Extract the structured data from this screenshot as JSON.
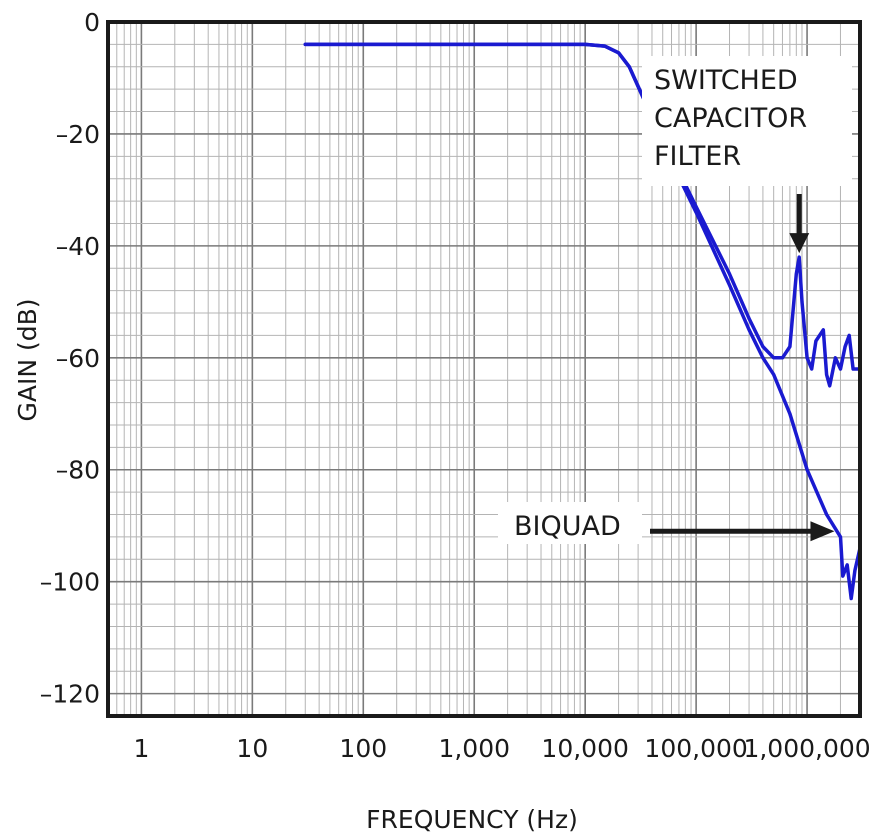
{
  "chart_data": {
    "type": "line",
    "xlabel": "FREQUENCY (Hz)",
    "ylabel": "GAIN (dB)",
    "x_scale": "log",
    "grid": true,
    "xlim": [
      0.5,
      3000000
    ],
    "ylim": [
      -124,
      0
    ],
    "x_ticks": [
      {
        "value": 1,
        "label": "1"
      },
      {
        "value": 10,
        "label": "10"
      },
      {
        "value": 100,
        "label": "100"
      },
      {
        "value": 1000,
        "label": "1,000"
      },
      {
        "value": 10000,
        "label": "10,000"
      },
      {
        "value": 100000,
        "label": "100,000"
      },
      {
        "value": 1000000,
        "label": "1,000,000"
      }
    ],
    "y_ticks": [
      {
        "value": 0,
        "label": "0"
      },
      {
        "value": -20,
        "label": "–20"
      },
      {
        "value": -40,
        "label": "–40"
      },
      {
        "value": -60,
        "label": "–60"
      },
      {
        "value": -80,
        "label": "–80"
      },
      {
        "value": -100,
        "label": "–100"
      },
      {
        "value": -120,
        "label": "–120"
      }
    ],
    "series": [
      {
        "color": "#1a1ad0",
        "points": [
          [
            30,
            -4
          ],
          [
            1000,
            -4
          ],
          [
            10000,
            -4
          ],
          [
            15000,
            -4.3
          ],
          [
            20000,
            -5.5
          ],
          [
            25000,
            -8
          ],
          [
            30000,
            -11.5
          ],
          [
            40000,
            -17
          ],
          [
            60000,
            -24
          ],
          [
            100000,
            -33
          ],
          [
            200000,
            -45
          ],
          [
            300000,
            -53
          ],
          [
            400000,
            -58
          ],
          [
            500000,
            -60
          ],
          [
            600000,
            -60
          ],
          [
            700000,
            -58
          ],
          [
            800000,
            -45
          ],
          [
            850000,
            -42
          ],
          [
            900000,
            -50
          ],
          [
            1000000,
            -60
          ],
          [
            1100000,
            -62
          ],
          [
            1200000,
            -57
          ],
          [
            1400000,
            -55
          ],
          [
            1500000,
            -63
          ],
          [
            1600000,
            -65
          ],
          [
            1800000,
            -60
          ],
          [
            2000000,
            -62
          ],
          [
            2200000,
            -58
          ],
          [
            2400000,
            -56
          ],
          [
            2600000,
            -62
          ],
          [
            3000000,
            -62
          ]
        ]
      },
      {
        "color": "#1a1ad0",
        "points": [
          [
            30,
            -4
          ],
          [
            1000,
            -4
          ],
          [
            10000,
            -4
          ],
          [
            15000,
            -4.3
          ],
          [
            20000,
            -5.5
          ],
          [
            25000,
            -8
          ],
          [
            30000,
            -11.5
          ],
          [
            40000,
            -17
          ],
          [
            60000,
            -25
          ],
          [
            100000,
            -34
          ],
          [
            200000,
            -47
          ],
          [
            300000,
            -55
          ],
          [
            400000,
            -60
          ],
          [
            500000,
            -63
          ],
          [
            700000,
            -70
          ],
          [
            1000000,
            -80
          ],
          [
            1500000,
            -88
          ],
          [
            2000000,
            -92
          ],
          [
            2100000,
            -99
          ],
          [
            2300000,
            -97
          ],
          [
            2500000,
            -103
          ],
          [
            2700000,
            -98
          ],
          [
            3000000,
            -94
          ]
        ]
      }
    ],
    "annotations": [
      {
        "lines": [
          "SWITCHED",
          "CAPACITOR",
          "FILTER"
        ],
        "arrow": "down",
        "target": [
          850000,
          -42
        ]
      },
      {
        "lines": [
          "BIQUAD"
        ],
        "arrow": "right",
        "target": [
          2000000,
          -91
        ]
      }
    ]
  }
}
